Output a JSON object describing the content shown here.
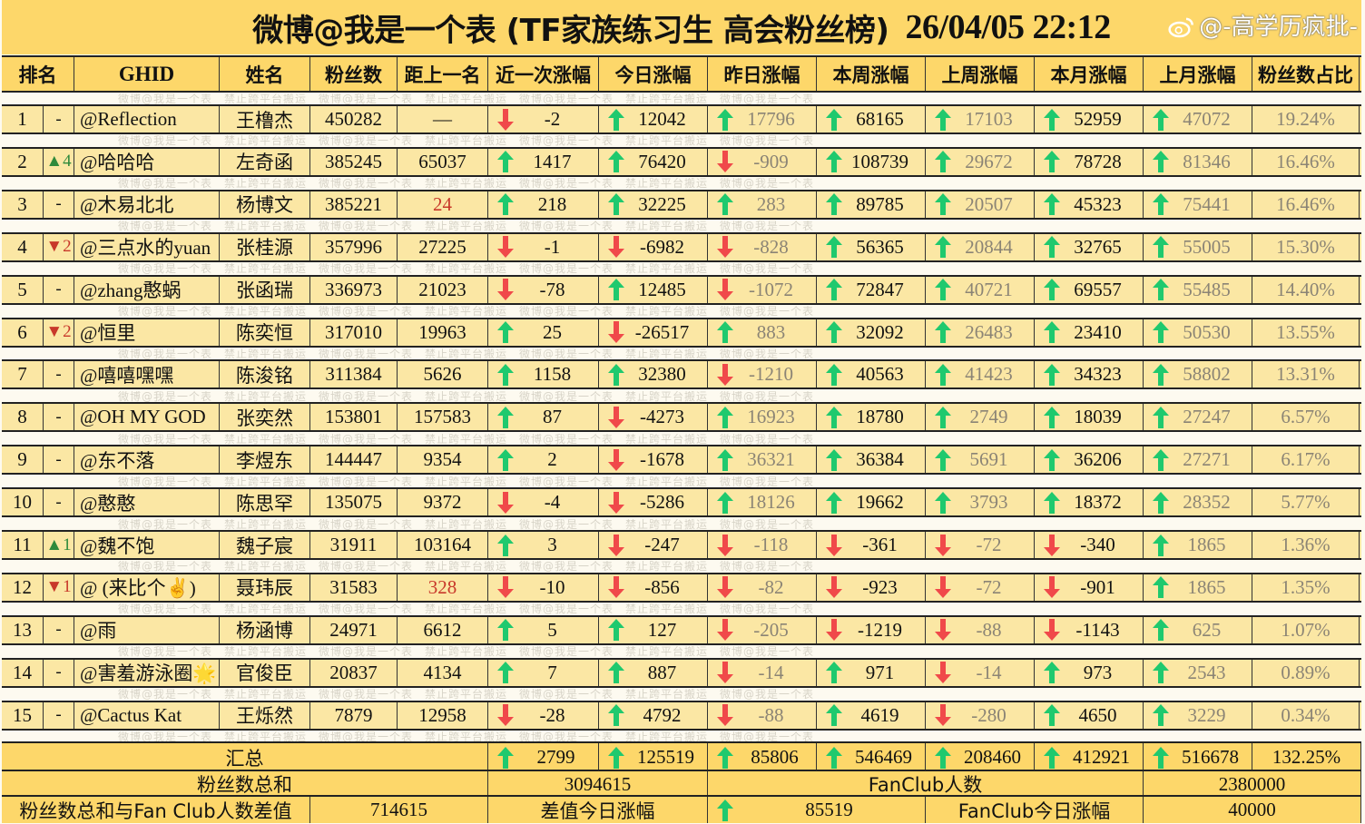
{
  "title": {
    "text": "微博@我是一个表 (TF家族练习生 高会粉丝榜)",
    "timestamp": "26/04/05 22:12"
  },
  "watermark": "微博@我是一个表　禁止跨平台搬运　微博@我是一个表　禁止跨平台搬运　微博@我是一个表　禁止跨平台搬运　微博@我是一个表",
  "colors": {
    "header_bg": "#fdd76a",
    "row_bg": "#fbe7a4",
    "up_arrow": "#1fc96e",
    "down_arrow": "#f0494a",
    "rank_up": "#2f8a3c",
    "rank_down": "#c8382a",
    "highlight": "#c8382a"
  },
  "columns": [
    "排名",
    "",
    "GHID",
    "姓名",
    "粉丝数",
    "距上一名",
    "近一次涨幅",
    "今日涨幅",
    "昨日涨幅",
    "本周涨幅",
    "上周涨幅",
    "本月涨幅",
    "上月涨幅",
    "粉丝数占比"
  ],
  "rows": [
    {
      "rank": "1",
      "change": "-",
      "change_dir": "",
      "ghid": "@Reflection",
      "name": "王橹杰",
      "fans": "450282",
      "gap": "—",
      "gap_red": false,
      "recent": [
        "down",
        "-2"
      ],
      "today": [
        "up",
        "12042"
      ],
      "yesterday": [
        "up",
        "17796"
      ],
      "week": [
        "up",
        "68165"
      ],
      "last_week": [
        "up",
        "17103"
      ],
      "month": [
        "up",
        "52959"
      ],
      "last_month": [
        "up",
        "47072"
      ],
      "share": "19.24%"
    },
    {
      "rank": "2",
      "change": "▲4",
      "change_dir": "up",
      "ghid": "@哈哈哈",
      "name": "左奇函",
      "fans": "385245",
      "gap": "65037",
      "gap_red": false,
      "recent": [
        "up",
        "1417"
      ],
      "today": [
        "up",
        "76420"
      ],
      "yesterday": [
        "down",
        "-909"
      ],
      "week": [
        "up",
        "108739"
      ],
      "last_week": [
        "up",
        "29672"
      ],
      "month": [
        "up",
        "78728"
      ],
      "last_month": [
        "up",
        "81346"
      ],
      "share": "16.46%"
    },
    {
      "rank": "3",
      "change": "-",
      "change_dir": "",
      "ghid": "@木易北北",
      "name": "杨博文",
      "fans": "385221",
      "gap": "24",
      "gap_red": true,
      "recent": [
        "up",
        "218"
      ],
      "today": [
        "up",
        "32225"
      ],
      "yesterday": [
        "up",
        "283"
      ],
      "week": [
        "up",
        "89785"
      ],
      "last_week": [
        "up",
        "20507"
      ],
      "month": [
        "up",
        "45323"
      ],
      "last_month": [
        "up",
        "75441"
      ],
      "share": "16.46%"
    },
    {
      "rank": "4",
      "change": "▼2",
      "change_dir": "down",
      "ghid": "@三点水的yuan",
      "name": "张桂源",
      "fans": "357996",
      "gap": "27225",
      "gap_red": false,
      "recent": [
        "down",
        "-1"
      ],
      "today": [
        "down",
        "-6982"
      ],
      "yesterday": [
        "down",
        "-828"
      ],
      "week": [
        "up",
        "56365"
      ],
      "last_week": [
        "up",
        "20844"
      ],
      "month": [
        "up",
        "32765"
      ],
      "last_month": [
        "up",
        "55005"
      ],
      "share": "15.30%"
    },
    {
      "rank": "5",
      "change": "-",
      "change_dir": "",
      "ghid": "@zhang憨蜗",
      "name": "张函瑞",
      "fans": "336973",
      "gap": "21023",
      "gap_red": false,
      "recent": [
        "down",
        "-78"
      ],
      "today": [
        "up",
        "12485"
      ],
      "yesterday": [
        "down",
        "-1072"
      ],
      "week": [
        "up",
        "72847"
      ],
      "last_week": [
        "up",
        "40721"
      ],
      "month": [
        "up",
        "69557"
      ],
      "last_month": [
        "up",
        "55485"
      ],
      "share": "14.40%"
    },
    {
      "rank": "6",
      "change": "▼2",
      "change_dir": "down",
      "ghid": "@恒里",
      "name": "陈奕恒",
      "fans": "317010",
      "gap": "19963",
      "gap_red": false,
      "recent": [
        "up",
        "25"
      ],
      "today": [
        "down",
        "-26517"
      ],
      "yesterday": [
        "up",
        "883"
      ],
      "week": [
        "up",
        "32092"
      ],
      "last_week": [
        "up",
        "26483"
      ],
      "month": [
        "up",
        "23410"
      ],
      "last_month": [
        "up",
        "50530"
      ],
      "share": "13.55%"
    },
    {
      "rank": "7",
      "change": "-",
      "change_dir": "",
      "ghid": "@嘻嘻嘿嘿",
      "name": "陈浚铭",
      "fans": "311384",
      "gap": "5626",
      "gap_red": false,
      "recent": [
        "up",
        "1158"
      ],
      "today": [
        "up",
        "32380"
      ],
      "yesterday": [
        "down",
        "-1210"
      ],
      "week": [
        "up",
        "40563"
      ],
      "last_week": [
        "up",
        "41423"
      ],
      "month": [
        "up",
        "34323"
      ],
      "last_month": [
        "up",
        "58802"
      ],
      "share": "13.31%"
    },
    {
      "rank": "8",
      "change": "-",
      "change_dir": "",
      "ghid": "@OH MY GOD",
      "name": "张奕然",
      "fans": "153801",
      "gap": "157583",
      "gap_red": false,
      "recent": [
        "up",
        "87"
      ],
      "today": [
        "down",
        "-4273"
      ],
      "yesterday": [
        "up",
        "16923"
      ],
      "week": [
        "up",
        "18780"
      ],
      "last_week": [
        "up",
        "2749"
      ],
      "month": [
        "up",
        "18039"
      ],
      "last_month": [
        "up",
        "27247"
      ],
      "share": "6.57%"
    },
    {
      "rank": "9",
      "change": "-",
      "change_dir": "",
      "ghid": "@东不落",
      "name": "李煜东",
      "fans": "144447",
      "gap": "9354",
      "gap_red": false,
      "recent": [
        "up",
        "2"
      ],
      "today": [
        "down",
        "-1678"
      ],
      "yesterday": [
        "up",
        "36321"
      ],
      "week": [
        "up",
        "36384"
      ],
      "last_week": [
        "up",
        "5691"
      ],
      "month": [
        "up",
        "36206"
      ],
      "last_month": [
        "up",
        "27271"
      ],
      "share": "6.17%"
    },
    {
      "rank": "10",
      "change": "-",
      "change_dir": "",
      "ghid": "@憨憨",
      "name": "陈思罕",
      "fans": "135075",
      "gap": "9372",
      "gap_red": false,
      "recent": [
        "down",
        "-4"
      ],
      "today": [
        "down",
        "-5286"
      ],
      "yesterday": [
        "up",
        "18126"
      ],
      "week": [
        "up",
        "19662"
      ],
      "last_week": [
        "up",
        "3793"
      ],
      "month": [
        "up",
        "18372"
      ],
      "last_month": [
        "up",
        "28352"
      ],
      "share": "5.77%"
    },
    {
      "rank": "11",
      "change": "▲1",
      "change_dir": "up",
      "ghid": "@魏不饱",
      "name": "魏子宸",
      "fans": "31911",
      "gap": "103164",
      "gap_red": false,
      "recent": [
        "up",
        "3"
      ],
      "today": [
        "down",
        "-247"
      ],
      "yesterday": [
        "down",
        "-118"
      ],
      "week": [
        "down",
        "-361"
      ],
      "last_week": [
        "down",
        "-72"
      ],
      "month": [
        "down",
        "-340"
      ],
      "last_month": [
        "up",
        "1865"
      ],
      "share": "1.36%"
    },
    {
      "rank": "12",
      "change": "▼1",
      "change_dir": "down",
      "ghid": "@ (来比个✌️)",
      "name": "聂玮辰",
      "fans": "31583",
      "gap": "328",
      "gap_red": true,
      "recent": [
        "down",
        "-10"
      ],
      "today": [
        "down",
        "-856"
      ],
      "yesterday": [
        "down",
        "-82"
      ],
      "week": [
        "down",
        "-923"
      ],
      "last_week": [
        "down",
        "-72"
      ],
      "month": [
        "down",
        "-901"
      ],
      "last_month": [
        "up",
        "1865"
      ],
      "share": "1.35%"
    },
    {
      "rank": "13",
      "change": "-",
      "change_dir": "",
      "ghid": "@雨",
      "name": "杨涵博",
      "fans": "24971",
      "gap": "6612",
      "gap_red": false,
      "recent": [
        "up",
        "5"
      ],
      "today": [
        "up",
        "127"
      ],
      "yesterday": [
        "down",
        "-205"
      ],
      "week": [
        "down",
        "-1219"
      ],
      "last_week": [
        "down",
        "-88"
      ],
      "month": [
        "down",
        "-1143"
      ],
      "last_month": [
        "up",
        "625"
      ],
      "share": "1.07%"
    },
    {
      "rank": "14",
      "change": "-",
      "change_dir": "",
      "ghid": "@害羞游泳圈🌟",
      "name": "官俊臣",
      "fans": "20837",
      "gap": "4134",
      "gap_red": false,
      "recent": [
        "up",
        "7"
      ],
      "today": [
        "up",
        "887"
      ],
      "yesterday": [
        "down",
        "-14"
      ],
      "week": [
        "up",
        "971"
      ],
      "last_week": [
        "down",
        "-14"
      ],
      "month": [
        "up",
        "973"
      ],
      "last_month": [
        "up",
        "2543"
      ],
      "share": "0.89%"
    },
    {
      "rank": "15",
      "change": "-",
      "change_dir": "",
      "ghid": "@Cactus Kat",
      "name": "王烁然",
      "fans": "7879",
      "gap": "12958",
      "gap_red": false,
      "recent": [
        "down",
        "-28"
      ],
      "today": [
        "up",
        "4792"
      ],
      "yesterday": [
        "down",
        "-88"
      ],
      "week": [
        "up",
        "4619"
      ],
      "last_week": [
        "down",
        "-280"
      ],
      "month": [
        "up",
        "4650"
      ],
      "last_month": [
        "up",
        "3229"
      ],
      "share": "0.34%"
    }
  ],
  "summary": {
    "label": "汇总",
    "values": [
      "2799",
      "125519",
      "85806",
      "546469",
      "208460",
      "412921",
      "516678"
    ],
    "share": "132.25%",
    "total_fans_label": "粉丝数总和",
    "total_fans": "3094615",
    "fanclub_label": "FanClub人数",
    "fanclub": "2380000",
    "diff_label": "粉丝数总和与Fan Club人数差值",
    "diff": "714615",
    "diff_today_label": "差值今日涨幅",
    "diff_today": "85519",
    "fanclub_today_label": "FanClub今日涨幅",
    "fanclub_today": "40000"
  },
  "logo_watermark": "@-高学历疯批-"
}
